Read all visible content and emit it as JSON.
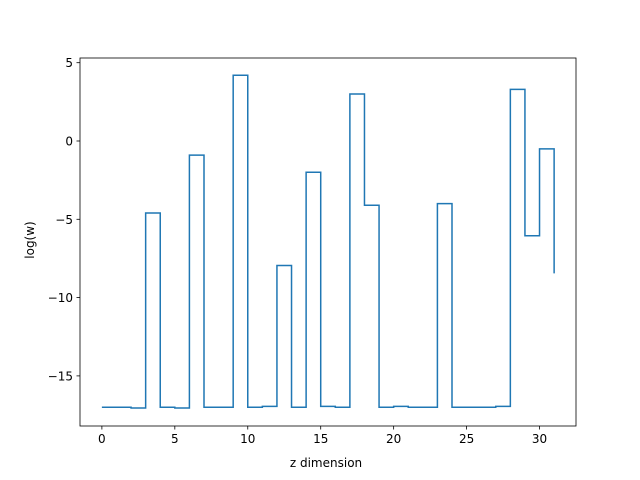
{
  "chart_data": {
    "type": "line",
    "drawstyle": "steps-post",
    "title": "",
    "xlabel": "z dimension",
    "ylabel": "log(w)",
    "xlim": [
      -1.5,
      32.5
    ],
    "ylim": [
      -18.2,
      5.3
    ],
    "xticks": [
      0,
      5,
      10,
      15,
      20,
      25,
      30
    ],
    "yticks": [
      5,
      0,
      -5,
      -10,
      -15
    ],
    "ytick_labels": [
      "5",
      "0",
      "−5",
      "−10",
      "−15"
    ],
    "grid": false,
    "legend": "none",
    "series": [
      {
        "color": "#1f77b4",
        "x": [
          0,
          1,
          2,
          3,
          4,
          5,
          6,
          7,
          8,
          9,
          10,
          11,
          12,
          13,
          14,
          15,
          16,
          17,
          18,
          19,
          20,
          21,
          22,
          23,
          24,
          25,
          26,
          27,
          28,
          29,
          30,
          31
        ],
        "y": [
          -17.0,
          -17.0,
          -17.05,
          -4.6,
          -17.0,
          -17.05,
          -0.9,
          -17.0,
          -17.0,
          4.2,
          -17.0,
          -16.95,
          -7.95,
          -17.0,
          -2.0,
          -16.95,
          -17.0,
          3.0,
          -4.1,
          -17.0,
          -16.95,
          -17.0,
          -17.0,
          -4.0,
          -17.0,
          -17.0,
          -17.0,
          -16.95,
          3.3,
          -6.05,
          -0.5,
          -8.45
        ]
      }
    ]
  }
}
